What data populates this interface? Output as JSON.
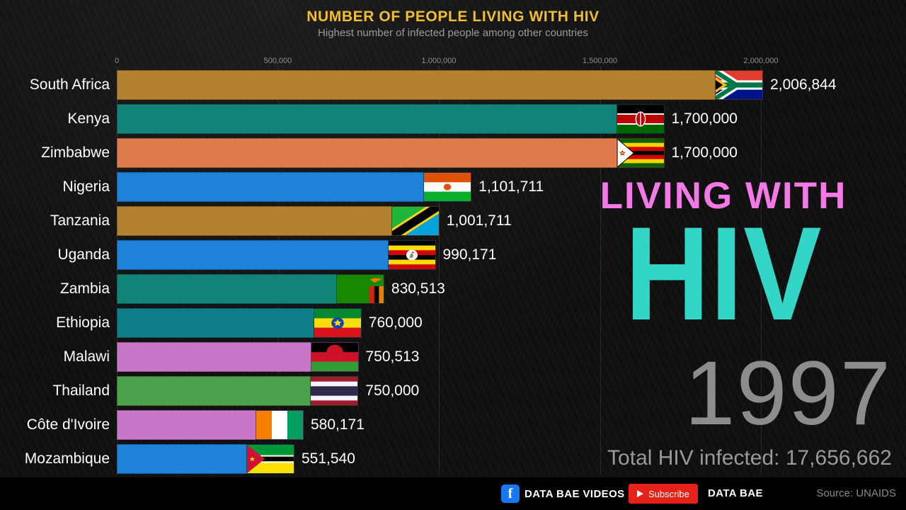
{
  "header": {
    "title": "NUMBER OF PEOPLE LIVING WITH HIV",
    "subtitle": "Highest number of infected people among other countries",
    "title_color": "#F2BE2E"
  },
  "chart_data": {
    "type": "bar",
    "orientation": "horizontal",
    "title": "NUMBER OF PEOPLE LIVING WITH HIV",
    "subtitle": "Highest number of infected people among other countries",
    "xlim": [
      0,
      2000000
    ],
    "grid": true,
    "x_ticks": [
      {
        "value": 0,
        "label": "0"
      },
      {
        "value": 500000,
        "label": "500,000"
      },
      {
        "value": 1000000,
        "label": "1,000,000"
      },
      {
        "value": 1500000,
        "label": "1,500,000"
      },
      {
        "value": 2000000,
        "label": "2,000,000"
      }
    ],
    "categories": [
      "South Africa",
      "Kenya",
      "Zimbabwe",
      "Nigeria",
      "Tanzania",
      "Uganda",
      "Zambia",
      "Ethiopia",
      "Malawi",
      "Thailand",
      "Côte d'Ivoire",
      "Mozambique"
    ],
    "values": [
      2006844,
      1700000,
      1700000,
      1101711,
      1001711,
      990171,
      830513,
      760000,
      750513,
      750000,
      580171,
      551540
    ],
    "bars": [
      {
        "country": "South Africa",
        "value": 2006844,
        "label": "2,006,844",
        "color": "#B3812F",
        "flag": "za"
      },
      {
        "country": "Kenya",
        "value": 1700000,
        "label": "1,700,000",
        "color": "#108577",
        "flag": "ke"
      },
      {
        "country": "Zimbabwe",
        "value": 1700000,
        "label": "1,700,000",
        "color": "#E07A4C",
        "flag": "zw"
      },
      {
        "country": "Nigeria",
        "value": 1101711,
        "label": "1,101,711",
        "color": "#1E82D8",
        "flag": "ne"
      },
      {
        "country": "Tanzania",
        "value": 1001711,
        "label": "1,001,711",
        "color": "#B3812F",
        "flag": "tz"
      },
      {
        "country": "Uganda",
        "value": 990171,
        "label": "990,171",
        "color": "#1E82D8",
        "flag": "ug"
      },
      {
        "country": "Zambia",
        "value": 830513,
        "label": "830,513",
        "color": "#108577",
        "flag": "zm"
      },
      {
        "country": "Ethiopia",
        "value": 760000,
        "label": "760,000",
        "color": "#0E7F89",
        "flag": "et"
      },
      {
        "country": "Malawi",
        "value": 750513,
        "label": "750,513",
        "color": "#C876C8",
        "flag": "mw"
      },
      {
        "country": "Thailand",
        "value": 750000,
        "label": "750,000",
        "color": "#4CA24C",
        "flag": "th"
      },
      {
        "country": "Côte d'Ivoire",
        "value": 580171,
        "label": "580,171",
        "color": "#C876C8",
        "flag": "ci"
      },
      {
        "country": "Mozambique",
        "value": 551540,
        "label": "551,540",
        "color": "#1E82D8",
        "flag": "mz"
      }
    ]
  },
  "overlay": {
    "top_line": "LIVING WITH",
    "main_line": "HIV",
    "top_color": "#F279E6",
    "main_color": "#33D6C6",
    "year": "1997",
    "total_label": "Total HIV infected: 17,656,662"
  },
  "footer": {
    "facebook_text": "DATA BAE VIDEOS",
    "subscribe_text": "Subscribe",
    "brand_text": "DATA BAE",
    "source_text": "Source: UNAIDS",
    "subscribe_color": "#E62117",
    "facebook_color": "#1877F2"
  }
}
